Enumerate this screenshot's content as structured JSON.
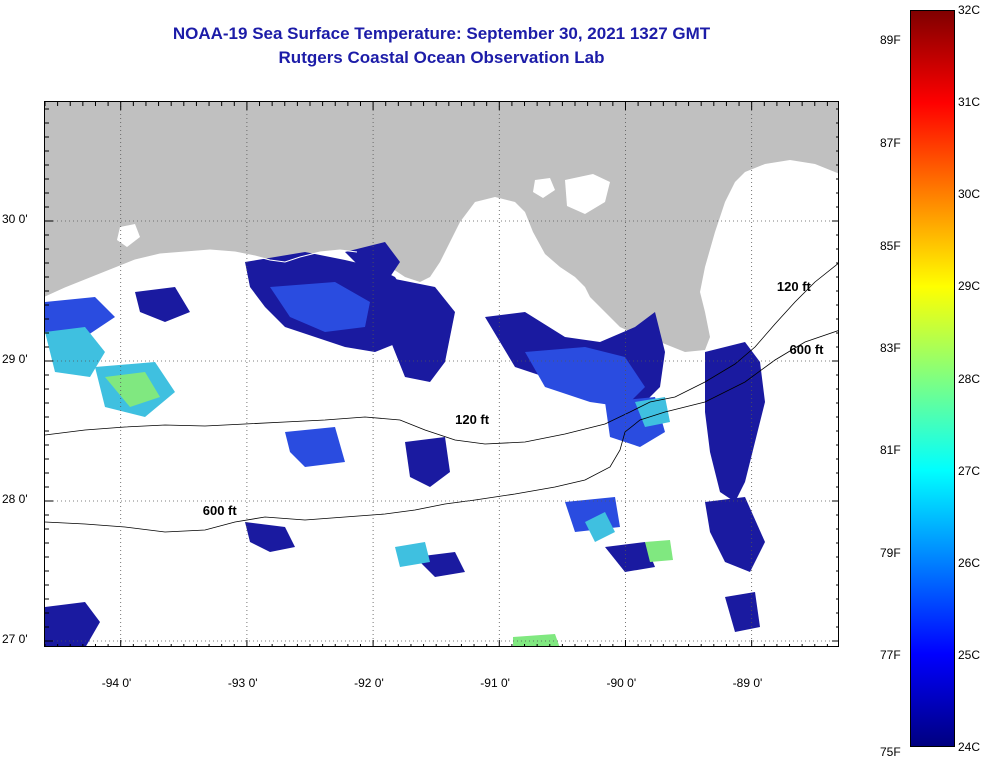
{
  "title": {
    "line1": "NOAA-19 Sea Surface Temperature:  September 30, 2021 1327 GMT",
    "line2": "Rutgers Coastal Ocean Observation Lab"
  },
  "map": {
    "lon_range": [
      -94.6,
      -88.3
    ],
    "lat_range": [
      26.95,
      30.85
    ],
    "lat_ticks": [
      {
        "value": 30.0,
        "label": "30 0'"
      },
      {
        "value": 29.0,
        "label": "29 0'"
      },
      {
        "value": 28.0,
        "label": "28 0'"
      },
      {
        "value": 27.0,
        "label": "27 0'"
      }
    ],
    "lon_ticks": [
      {
        "value": -94.0,
        "label": "-94 0'"
      },
      {
        "value": -93.0,
        "label": "-93 0'"
      },
      {
        "value": -92.0,
        "label": "-92 0'"
      },
      {
        "value": -91.0,
        "label": "-91 0'"
      },
      {
        "value": -90.0,
        "label": "-90 0'"
      },
      {
        "value": -89.0,
        "label": "-89 0'"
      }
    ],
    "contour_labels": [
      {
        "text": "120 ft",
        "lon": -91.35,
        "lat": 28.55
      },
      {
        "text": "600 ft",
        "lon": -93.35,
        "lat": 27.9
      },
      {
        "text": "120 ft",
        "lon": -88.8,
        "lat": 29.5
      },
      {
        "text": "600 ft",
        "lon": -88.7,
        "lat": 29.05
      }
    ],
    "land_color": "#c0c0c0",
    "grid": true
  },
  "colorbar": {
    "f_labels": [
      {
        "text": "89F",
        "temp_c": 31.67
      },
      {
        "text": "87F",
        "temp_c": 30.56
      },
      {
        "text": "85F",
        "temp_c": 29.44
      },
      {
        "text": "83F",
        "temp_c": 28.33
      },
      {
        "text": "81F",
        "temp_c": 27.22
      },
      {
        "text": "79F",
        "temp_c": 26.11
      },
      {
        "text": "77F",
        "temp_c": 25.0
      },
      {
        "text": "75F",
        "temp_c": 23.89
      }
    ],
    "c_labels": [
      {
        "text": "32C",
        "temp_c": 32
      },
      {
        "text": "31C",
        "temp_c": 31
      },
      {
        "text": "30C",
        "temp_c": 30
      },
      {
        "text": "29C",
        "temp_c": 29
      },
      {
        "text": "28C",
        "temp_c": 28
      },
      {
        "text": "27C",
        "temp_c": 27
      },
      {
        "text": "26C",
        "temp_c": 26
      },
      {
        "text": "25C",
        "temp_c": 25
      },
      {
        "text": "24C",
        "temp_c": 24
      }
    ],
    "range_c": [
      24,
      32
    ],
    "colors": [
      "#000080",
      "#0000ff",
      "#0080ff",
      "#00ffff",
      "#80ff80",
      "#ffff00",
      "#ff8000",
      "#ff0000",
      "#800000"
    ]
  }
}
